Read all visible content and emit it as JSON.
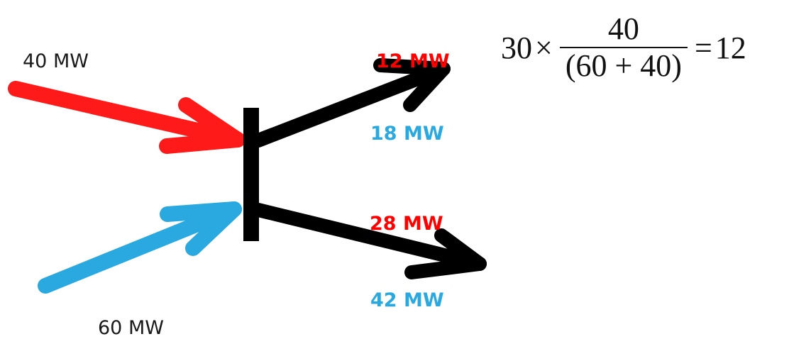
{
  "inputs": {
    "top_label": "40 MW",
    "bottom_label": "60 MW"
  },
  "outputs": {
    "upper_red_label": "12 MW",
    "upper_blue_label": "18 MW",
    "lower_red_label": "28 MW",
    "lower_blue_label": "42 MW"
  },
  "equation": {
    "multiplier": "30",
    "times": "×",
    "numerator": "40",
    "denominator": "(60 + 40)",
    "equals": "=",
    "result": "12"
  },
  "colors": {
    "red_flow": "#ff1a1a",
    "blue_flow": "#29a9e0",
    "junction": "#000000"
  }
}
